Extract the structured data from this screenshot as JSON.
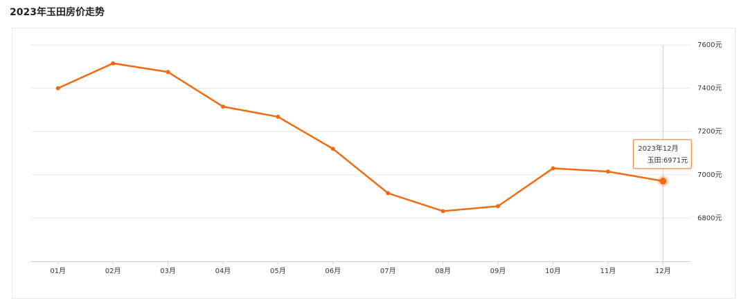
{
  "chart_data": {
    "type": "line",
    "title": "2023年玉田房价走势",
    "categories": [
      "01月",
      "02月",
      "03月",
      "04月",
      "05月",
      "06月",
      "07月",
      "08月",
      "09月",
      "10月",
      "11月",
      "12月"
    ],
    "series": [
      {
        "name": "玉田",
        "color": "#f26a10",
        "values": [
          7400,
          7515,
          7475,
          7315,
          7268,
          7120,
          6915,
          6832,
          6855,
          7030,
          7015,
          6971
        ]
      }
    ],
    "ylim": [
      6600,
      7600
    ],
    "yticks": [
      {
        "value": 6800,
        "label": "6800元"
      },
      {
        "value": 7000,
        "label": "7000元"
      },
      {
        "value": 7200,
        "label": "7200元"
      },
      {
        "value": 7400,
        "label": "7400元"
      },
      {
        "value": 7600,
        "label": "7600元"
      }
    ],
    "grid": true,
    "tooltip": {
      "title": "2023年12月",
      "text": "玉田:6971元"
    }
  }
}
